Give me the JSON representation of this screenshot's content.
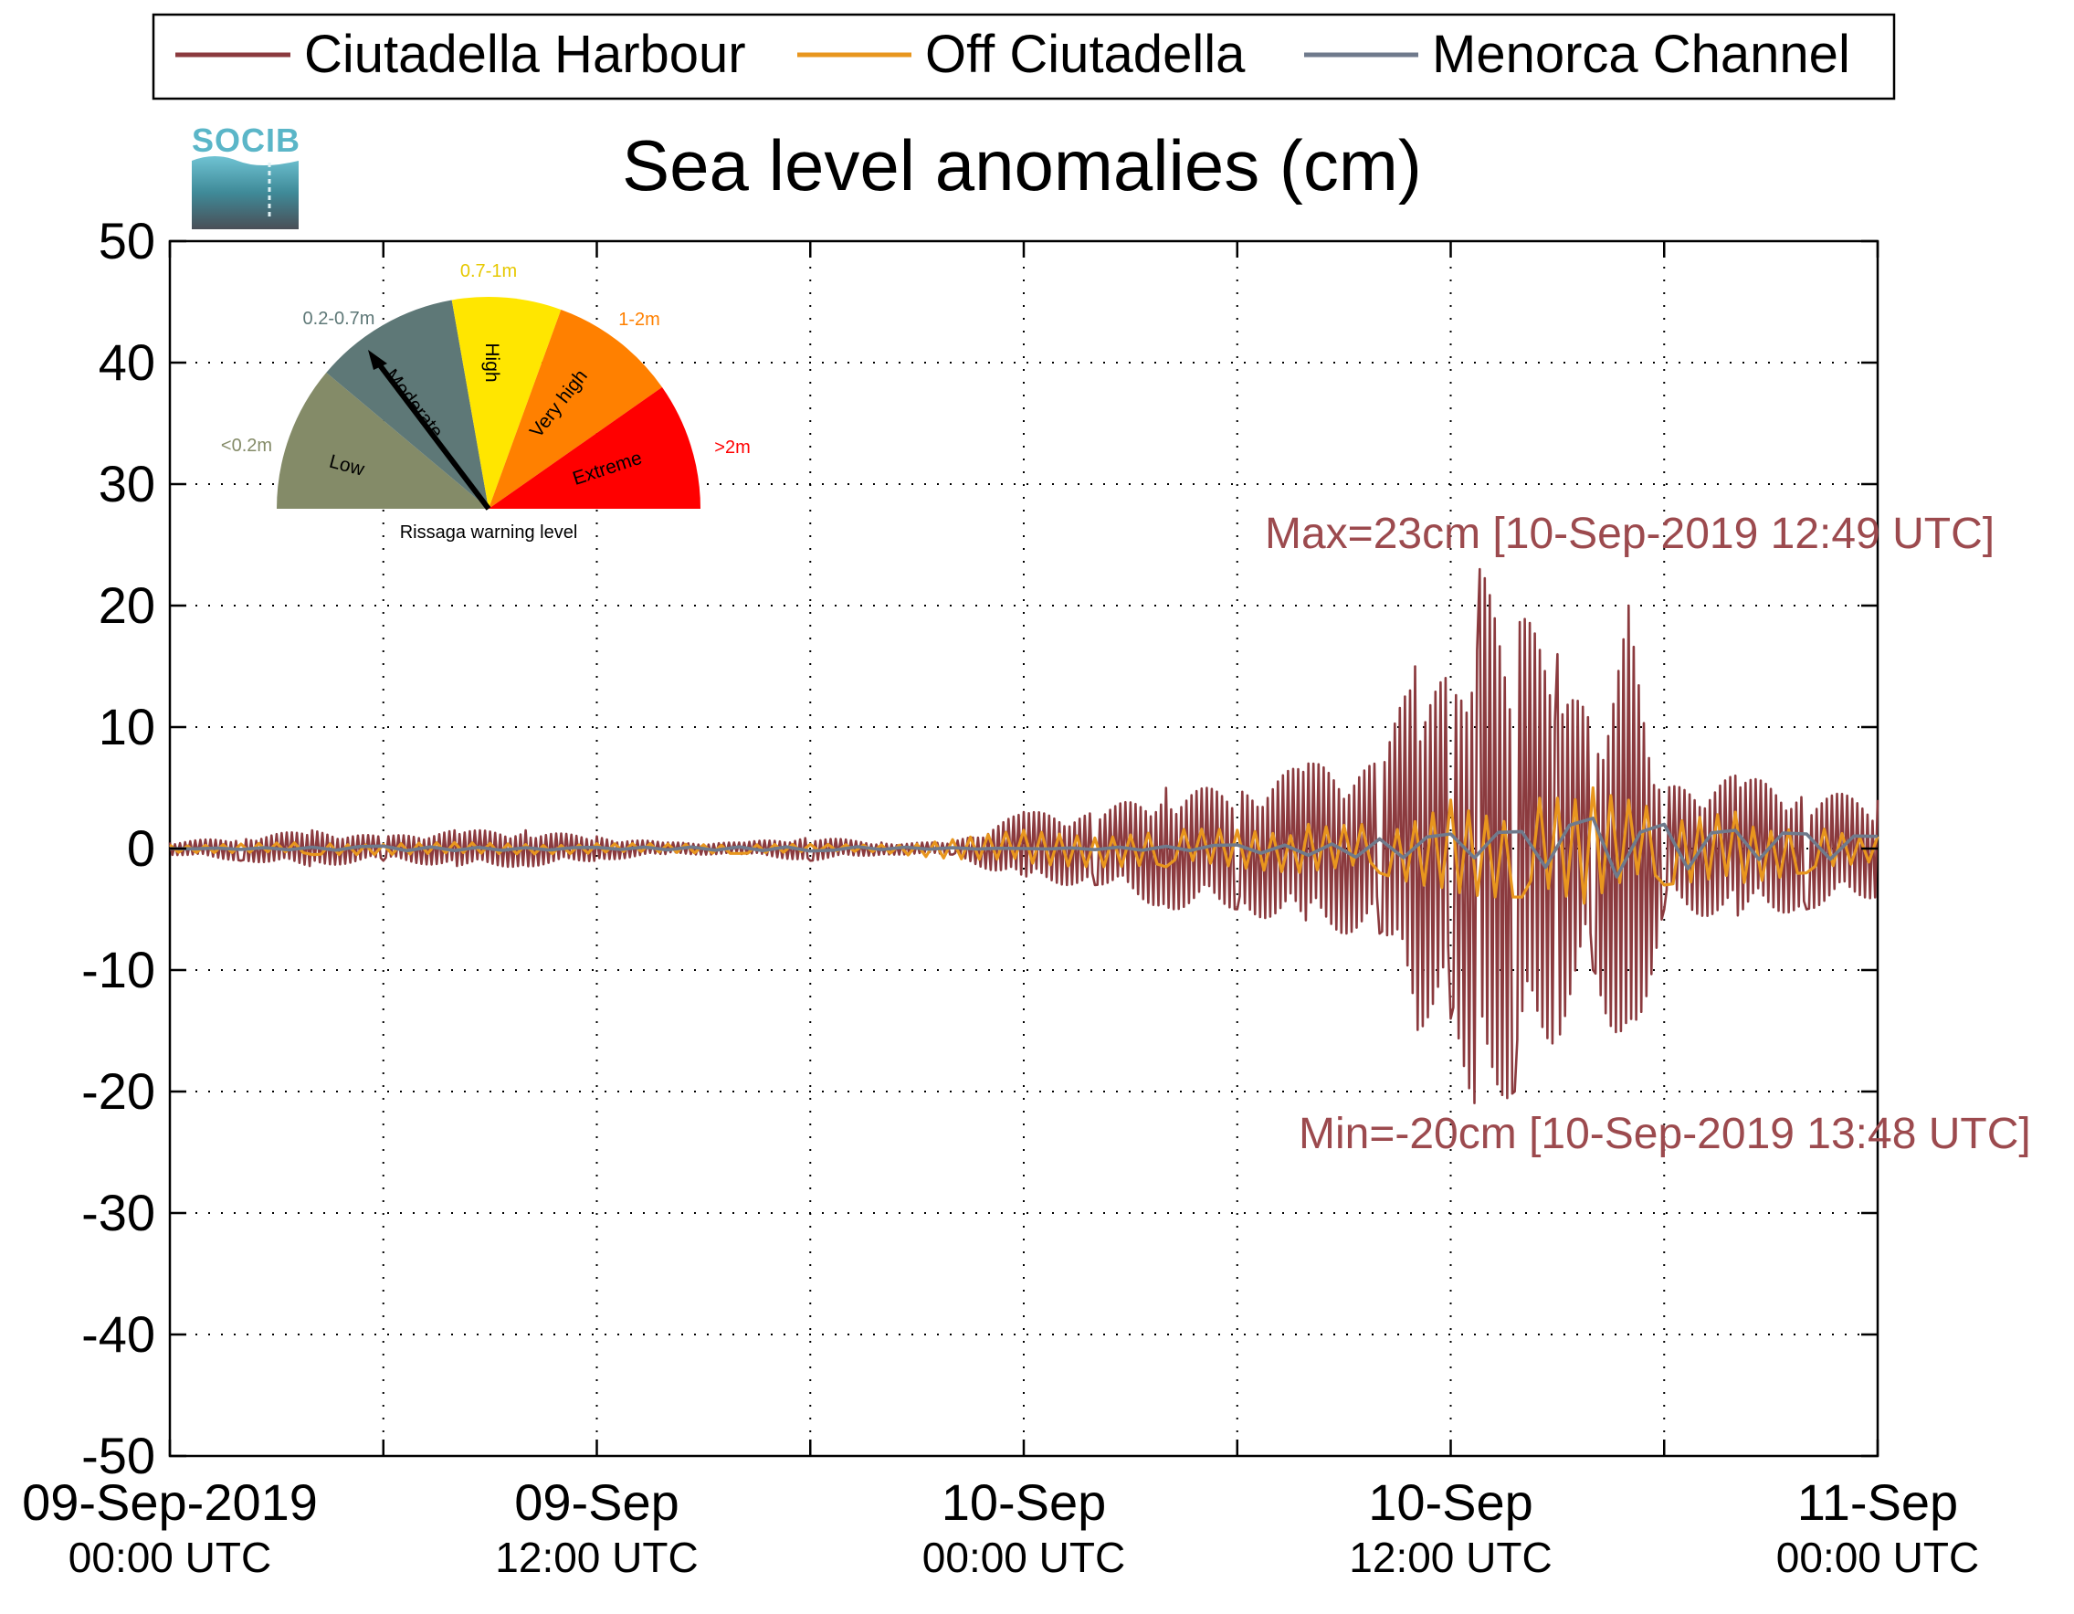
{
  "chart_data": {
    "type": "line",
    "title": "Sea level anomalies (cm)",
    "ylim": [
      -50,
      50
    ],
    "yticks": [
      50,
      40,
      30,
      20,
      10,
      0,
      -10,
      -20,
      -30,
      -40,
      -50
    ],
    "ytick_labels": [
      "50",
      "40",
      "30",
      "20",
      "10",
      "0",
      "-10",
      "-20",
      "-30",
      "-40",
      "-50"
    ],
    "xlim": [
      "2019-09-09T00:00Z",
      "2019-09-11T00:00Z"
    ],
    "xtick_labels": [
      {
        "date": "2019-09-09T00:00Z",
        "line1": "09-Sep-2019",
        "line2": "00:00 UTC"
      },
      {
        "date": "2019-09-09T12:00Z",
        "line1": "09-Sep",
        "line2": "12:00 UTC"
      },
      {
        "date": "2019-09-10T00:00Z",
        "line1": "10-Sep",
        "line2": "00:00 UTC"
      },
      {
        "date": "2019-09-10T12:00Z",
        "line1": "10-Sep",
        "line2": "12:00 UTC"
      },
      {
        "date": "2019-09-11T00:00Z",
        "line1": "11-Sep",
        "line2": "00:00 UTC"
      }
    ],
    "grid": true,
    "legend": "top",
    "series": [
      {
        "name": "Ciutadella Harbour",
        "color": "#8b3a3e",
        "x": [
          "2019-09-09T00:00Z",
          "2019-09-09T02:00Z",
          "2019-09-09T04:00Z",
          "2019-09-09T06:00Z",
          "2019-09-09T08:00Z",
          "2019-09-09T10:00Z",
          "2019-09-09T12:00Z",
          "2019-09-09T14:00Z",
          "2019-09-09T16:00Z",
          "2019-09-09T18:00Z",
          "2019-09-09T20:00Z",
          "2019-09-09T22:00Z",
          "2019-09-10T00:00Z",
          "2019-09-10T02:00Z",
          "2019-09-10T04:00Z",
          "2019-09-10T06:00Z",
          "2019-09-10T08:00Z",
          "2019-09-10T10:00Z",
          "2019-09-10T11:00Z",
          "2019-09-10T12:00Z",
          "2019-09-10T12:49Z",
          "2019-09-10T13:48Z",
          "2019-09-10T15:00Z",
          "2019-09-10T16:00Z",
          "2019-09-10T17:00Z",
          "2019-09-10T18:00Z",
          "2019-09-10T20:00Z",
          "2019-09-10T22:00Z",
          "2019-09-11T00:00Z"
        ],
        "y": [
          0.5,
          -1,
          1.5,
          -1,
          1.5,
          1.5,
          1,
          0.5,
          0.5,
          -1,
          0.5,
          -0.5,
          3,
          -3,
          5,
          -5,
          7,
          -7,
          15,
          -14,
          23,
          -20,
          16,
          -10,
          20,
          -5,
          6,
          -5,
          4
        ]
      },
      {
        "name": "Off Ciutadella",
        "color": "#e8961e",
        "x": [
          "2019-09-09T00:00Z",
          "2019-09-09T04:00Z",
          "2019-09-09T08:00Z",
          "2019-09-09T12:00Z",
          "2019-09-09T16:00Z",
          "2019-09-09T20:00Z",
          "2019-09-10T00:00Z",
          "2019-09-10T04:00Z",
          "2019-09-10T08:00Z",
          "2019-09-10T10:00Z",
          "2019-09-10T12:00Z",
          "2019-09-10T14:00Z",
          "2019-09-10T16:00Z",
          "2019-09-10T18:00Z",
          "2019-09-10T20:00Z",
          "2019-09-10T22:00Z",
          "2019-09-11T00:00Z"
        ],
        "y": [
          0.3,
          -0.5,
          0.5,
          0.4,
          -0.4,
          0.3,
          1.5,
          -1.5,
          2,
          -2,
          4,
          -4,
          5,
          -3,
          3,
          -2,
          1
        ]
      },
      {
        "name": "Menorca Channel",
        "color": "#6f7a8c",
        "x": [
          "2019-09-09T00:00Z",
          "2019-09-09T06:00Z",
          "2019-09-09T12:00Z",
          "2019-09-09T18:00Z",
          "2019-09-10T00:00Z",
          "2019-09-10T06:00Z",
          "2019-09-10T10:00Z",
          "2019-09-10T12:00Z",
          "2019-09-10T14:00Z",
          "2019-09-10T16:00Z",
          "2019-09-10T18:00Z",
          "2019-09-10T20:00Z",
          "2019-09-10T22:00Z",
          "2019-09-11T00:00Z"
        ],
        "y": [
          0,
          0.2,
          0.1,
          -0.2,
          0,
          0.3,
          0.8,
          1.2,
          1.4,
          2.5,
          2,
          1.5,
          1.2,
          1
        ]
      }
    ],
    "annotations": [
      {
        "text": "Max=23cm [10-Sep-2019 12:49 UTC]",
        "color": "#9c4a4e"
      },
      {
        "text": "Min=-20cm [10-Sep-2019 13:48 UTC]",
        "color": "#9c4a4e"
      }
    ]
  },
  "logo": {
    "text": "SOCIB",
    "color": "#5bb6c8"
  },
  "gauge": {
    "caption": "Rissaga warning level",
    "needle_level": "Moderate",
    "sectors": [
      {
        "label": "Low",
        "range": "<0.2m",
        "color": "#848b68",
        "range_color": "#848b68"
      },
      {
        "label": "Moderate",
        "range": "0.2-0.7m",
        "color": "#5e7877",
        "range_color": "#5e7877"
      },
      {
        "label": "High",
        "range": "0.7-1m",
        "color": "#ffe600",
        "range_color": "#e6c800"
      },
      {
        "label": "Very high",
        "range": "1-2m",
        "color": "#ff8000",
        "range_color": "#ff8000"
      },
      {
        "label": "Extreme",
        "range": ">2m",
        "color": "#ff0000",
        "range_color": "#ff0000"
      }
    ]
  }
}
